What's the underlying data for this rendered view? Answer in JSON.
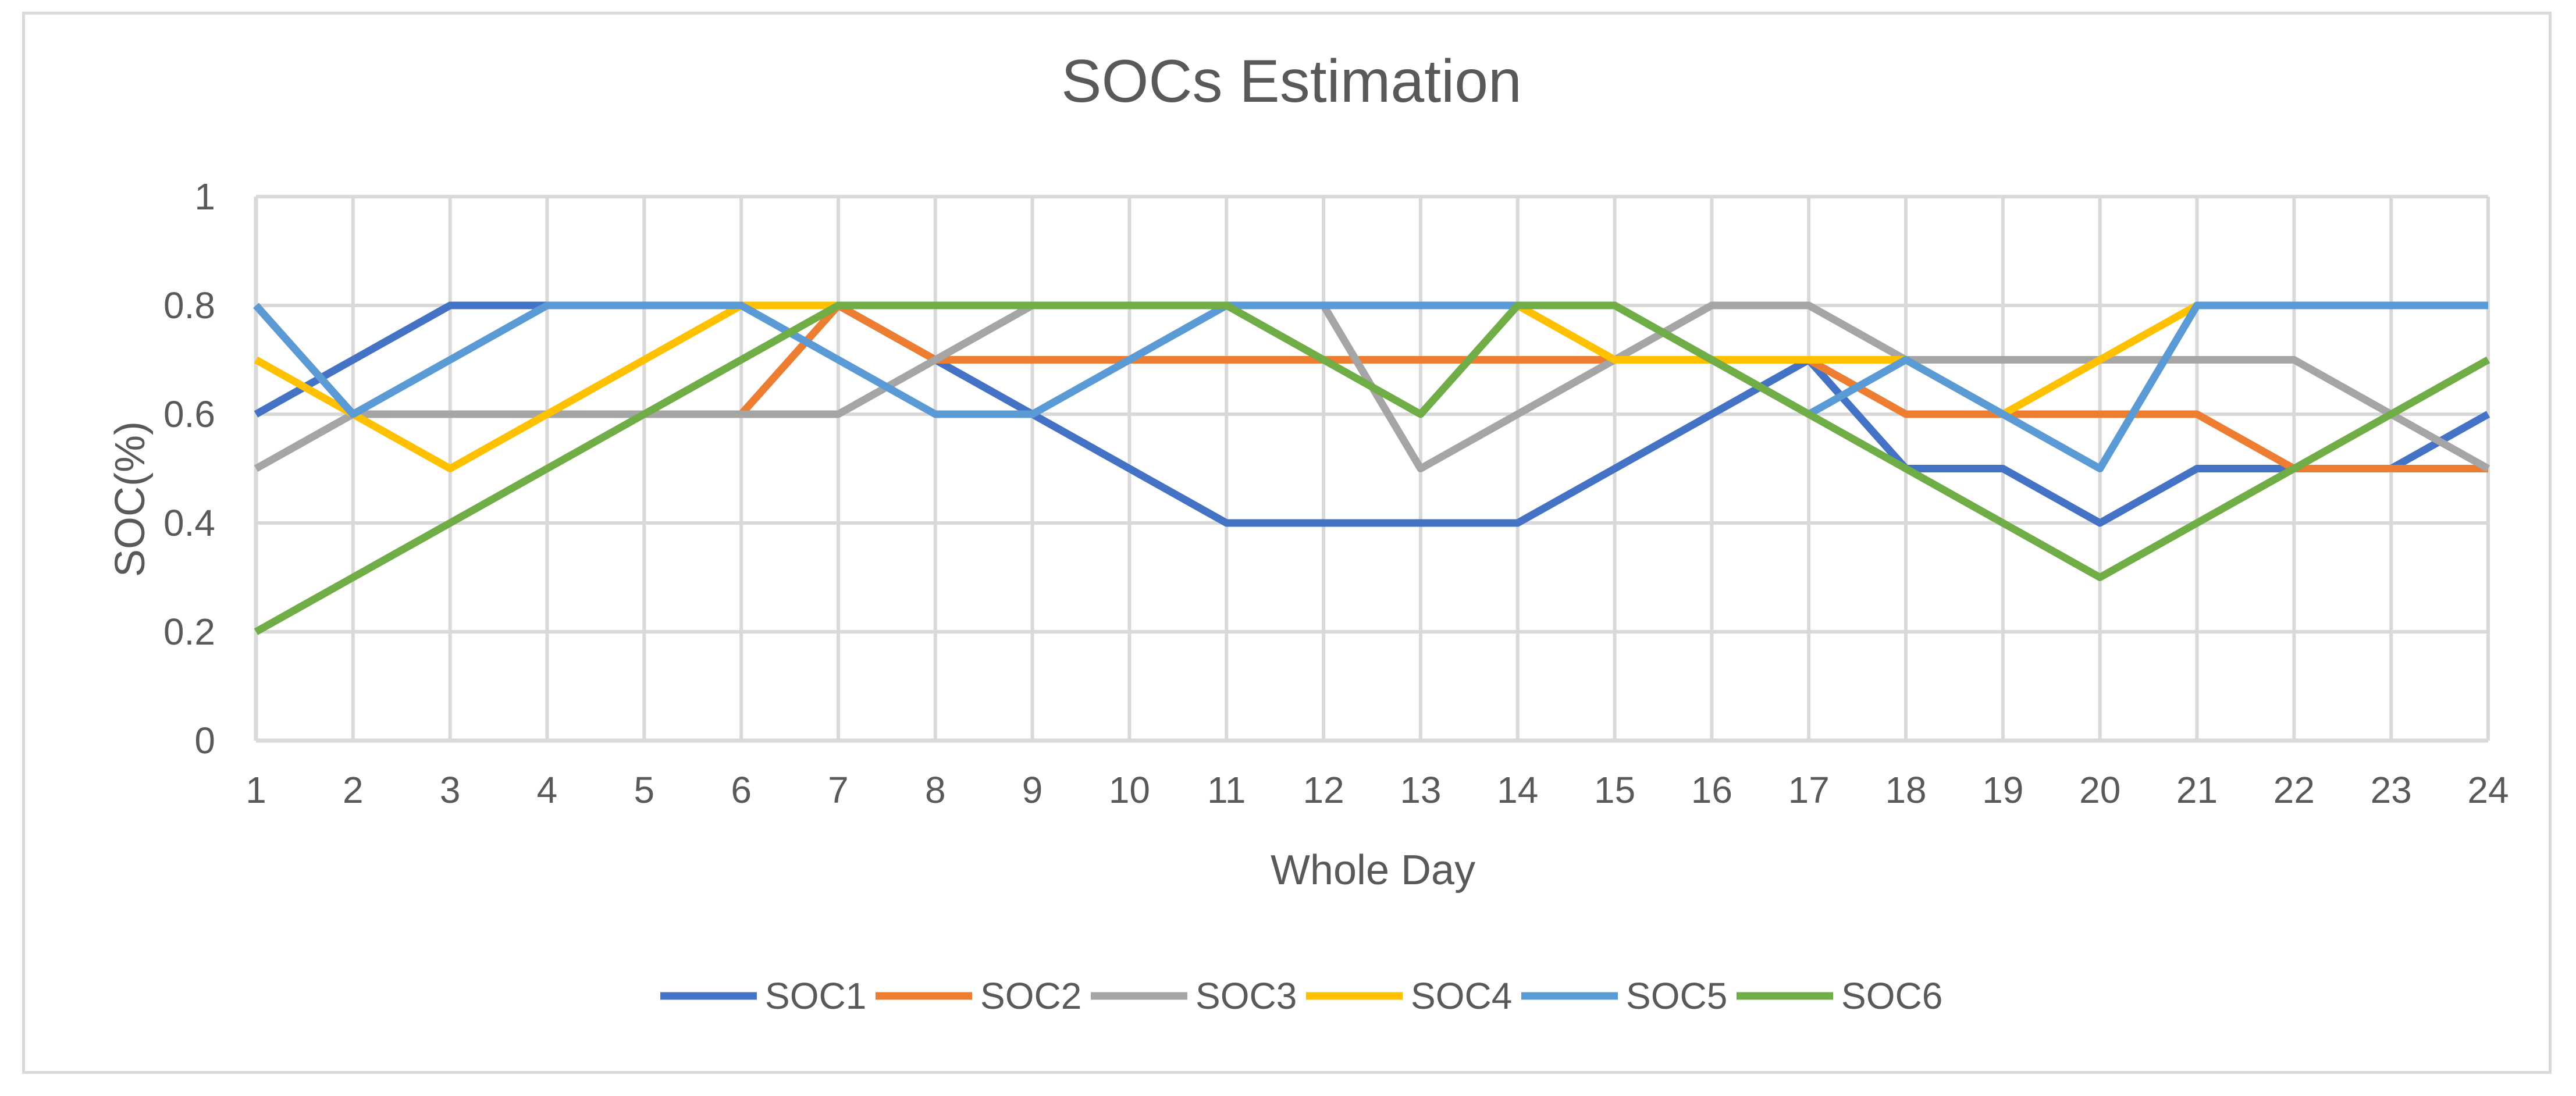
{
  "chart_data": {
    "type": "line",
    "title": "SOCs Estimation",
    "xlabel": "Whole Day",
    "ylabel": "SOC(%)",
    "ylim": [
      0,
      1
    ],
    "yticks": [
      "0",
      "0.2",
      "0.4",
      "0.6",
      "0.8",
      "1"
    ],
    "ytick_values": [
      0,
      0.2,
      0.4,
      0.6,
      0.8,
      1
    ],
    "categories": [
      "1",
      "2",
      "3",
      "4",
      "5",
      "6",
      "7",
      "8",
      "9",
      "10",
      "11",
      "12",
      "13",
      "14",
      "15",
      "16",
      "17",
      "18",
      "19",
      "20",
      "21",
      "22",
      "23",
      "24"
    ],
    "grid": true,
    "legend_position": "bottom",
    "series": [
      {
        "name": "SOC1",
        "color": "#4472C4",
        "values": [
          0.6,
          0.7,
          0.8,
          0.8,
          0.8,
          0.8,
          0.8,
          0.7,
          0.6,
          0.5,
          0.4,
          0.4,
          0.4,
          0.4,
          0.5,
          0.6,
          0.7,
          0.5,
          0.5,
          0.4,
          0.5,
          0.5,
          0.5,
          0.6
        ]
      },
      {
        "name": "SOC2",
        "color": "#ED7D31",
        "values": [
          0.8,
          0.6,
          0.6,
          0.6,
          0.6,
          0.6,
          0.8,
          0.7,
          0.7,
          0.7,
          0.7,
          0.7,
          0.7,
          0.7,
          0.7,
          0.7,
          0.7,
          0.6,
          0.6,
          0.6,
          0.6,
          0.5,
          0.5,
          0.5
        ]
      },
      {
        "name": "SOC3",
        "color": "#A5A5A5",
        "values": [
          0.5,
          0.6,
          0.6,
          0.6,
          0.6,
          0.6,
          0.6,
          0.7,
          0.8,
          0.8,
          0.8,
          0.8,
          0.5,
          0.6,
          0.7,
          0.8,
          0.8,
          0.7,
          0.7,
          0.7,
          0.7,
          0.7,
          0.6,
          0.5
        ]
      },
      {
        "name": "SOC4",
        "color": "#FFC000",
        "values": [
          0.7,
          0.6,
          0.5,
          0.6,
          0.7,
          0.8,
          0.8,
          0.8,
          0.8,
          0.8,
          0.8,
          0.8,
          0.8,
          0.8,
          0.7,
          0.7,
          0.7,
          0.7,
          0.6,
          0.7,
          0.8,
          0.8,
          0.8,
          0.8
        ]
      },
      {
        "name": "SOC5",
        "color": "#5B9BD5",
        "values": [
          0.8,
          0.6,
          0.7,
          0.8,
          0.8,
          0.8,
          0.7,
          0.6,
          0.6,
          0.7,
          0.8,
          0.8,
          0.8,
          0.8,
          0.8,
          0.7,
          0.6,
          0.7,
          0.6,
          0.5,
          0.8,
          0.8,
          0.8,
          0.8
        ]
      },
      {
        "name": "SOC6",
        "color": "#70AD47",
        "values": [
          0.2,
          0.3,
          0.4,
          0.5,
          0.6,
          0.7,
          0.8,
          0.8,
          0.8,
          0.8,
          0.8,
          0.7,
          0.6,
          0.8,
          0.8,
          0.7,
          0.6,
          0.5,
          0.4,
          0.3,
          0.4,
          0.5,
          0.6,
          0.7
        ]
      }
    ]
  }
}
